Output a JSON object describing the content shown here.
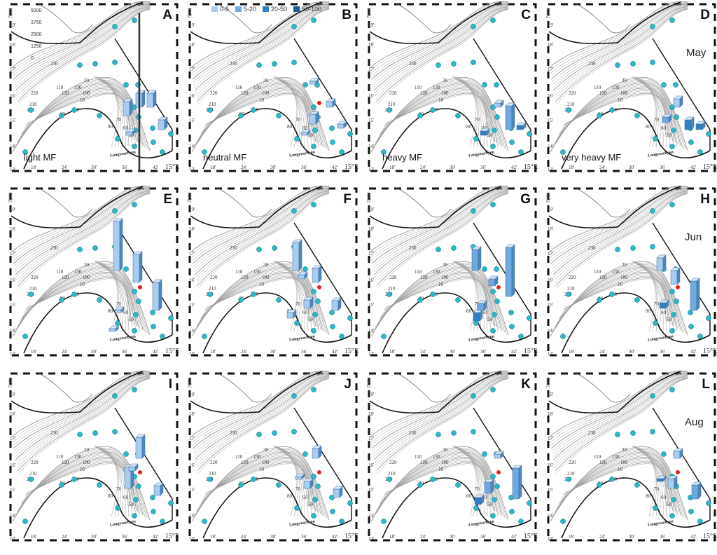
{
  "legend": {
    "items": [
      {
        "label": "0-5",
        "color": "#a9cdf0"
      },
      {
        "label": "5-20",
        "color": "#6fa9de"
      },
      {
        "label": "20-50",
        "color": "#2f7fc4"
      },
      {
        "label": "50-100",
        "color": "#1b5a98"
      }
    ]
  },
  "scale_bar": {
    "ticks": [
      "5000",
      "3750",
      "2500",
      "1250",
      "0"
    ]
  },
  "axes": {
    "lat_labels": [
      "78°N",
      "19'",
      "18'",
      "17'",
      "16'",
      "15'",
      "14'",
      "13'"
    ],
    "lon_labels": [
      "18'",
      "24'",
      "30'",
      "36'",
      "42'"
    ],
    "lon_unit": "15°E"
  },
  "contour_labels": [
    "230",
    "220",
    "210",
    "200",
    "120",
    "130",
    "110",
    "100",
    "90",
    "20",
    "10",
    "80",
    "70",
    "60",
    "50",
    "30"
  ],
  "town_label": "Longyearbyen",
  "months": [
    "May",
    "Jun",
    "Aug"
  ],
  "mf_labels": [
    "light MF",
    "neutral MF",
    "heavy MF",
    "very heavy MF"
  ],
  "panels": [
    {
      "letter": "A"
    },
    {
      "letter": "B"
    },
    {
      "letter": "C"
    },
    {
      "letter": "D"
    },
    {
      "letter": "E"
    },
    {
      "letter": "F"
    },
    {
      "letter": "G"
    },
    {
      "letter": "H"
    },
    {
      "letter": "I"
    },
    {
      "letter": "J"
    },
    {
      "letter": "K"
    },
    {
      "letter": "L"
    }
  ],
  "colors": {
    "station": "#2bb8c8",
    "red_station": "#e02020",
    "coast": "#111111",
    "contour": "#9a9a9a"
  }
}
